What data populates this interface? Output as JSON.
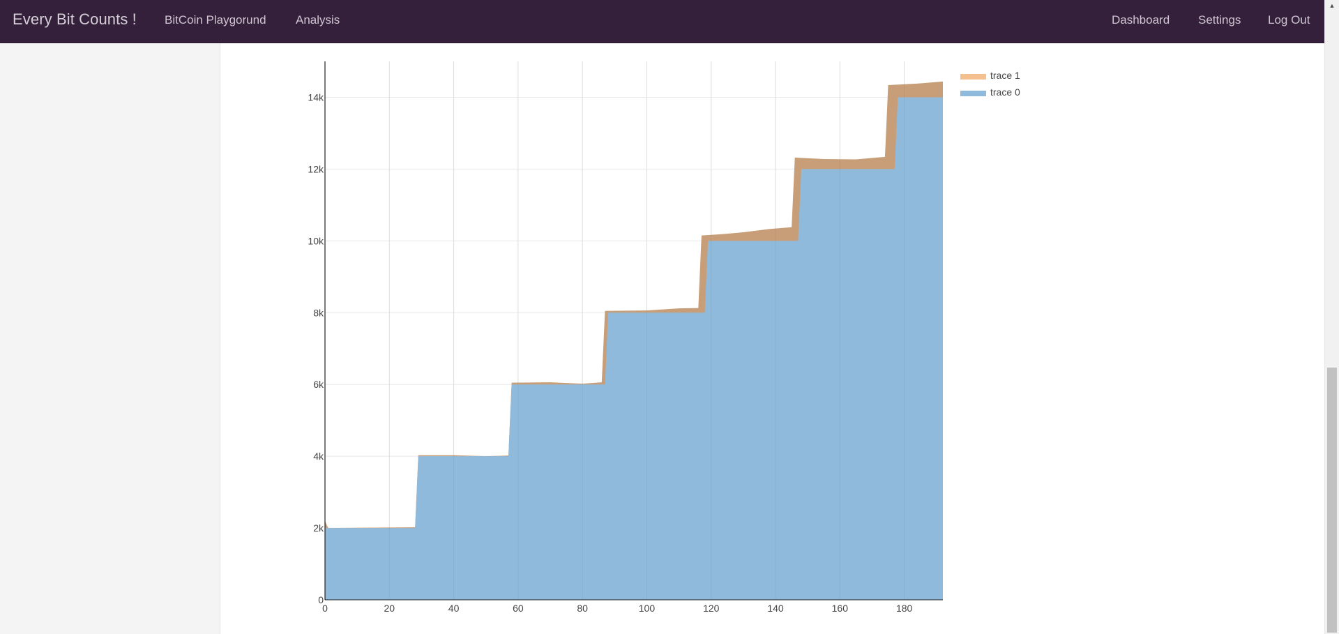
{
  "navbar": {
    "brand": "Every Bit Counts !",
    "left_links": [
      "BitCoin Playgorund",
      "Analysis"
    ],
    "right_links": [
      "Dashboard",
      "Settings",
      "Log Out"
    ]
  },
  "colors": {
    "navbar_bg": "#35203b",
    "trace0_fill": "#8fbadb",
    "trace1_fill": "#c89e78",
    "trace1_legend": "#f5c08f",
    "trace0_legend": "#8fbadb"
  },
  "chart_data": {
    "type": "area",
    "stacked": true,
    "grid": true,
    "legend_position": "top-right",
    "xlim": [
      0,
      192
    ],
    "ylim": [
      0,
      15000
    ],
    "x_ticks": [
      0,
      20,
      40,
      60,
      80,
      100,
      120,
      140,
      160,
      180
    ],
    "y_ticks": [
      0,
      2000,
      4000,
      6000,
      8000,
      10000,
      12000,
      14000
    ],
    "y_tick_labels": [
      "0",
      "2k",
      "4k",
      "6k",
      "8k",
      "10k",
      "12k",
      "14k"
    ],
    "legend": [
      "trace 1",
      "trace 0"
    ],
    "series": [
      {
        "name": "trace 0",
        "points": [
          [
            0,
            2000
          ],
          [
            28,
            2000
          ],
          [
            29,
            4000
          ],
          [
            57,
            4000
          ],
          [
            58,
            6000
          ],
          [
            87,
            6000
          ],
          [
            88,
            8000
          ],
          [
            118,
            8000
          ],
          [
            119,
            10000
          ],
          [
            147,
            10000
          ],
          [
            148,
            12000
          ],
          [
            177,
            12000
          ],
          [
            178,
            14000
          ],
          [
            192,
            14000
          ]
        ]
      },
      {
        "name": "trace 1",
        "points": [
          [
            0,
            2200
          ],
          [
            1,
            2000
          ],
          [
            28,
            2020
          ],
          [
            29,
            4030
          ],
          [
            40,
            4030
          ],
          [
            50,
            4000
          ],
          [
            57,
            4020
          ],
          [
            58,
            6050
          ],
          [
            70,
            6060
          ],
          [
            80,
            6020
          ],
          [
            86,
            6060
          ],
          [
            87,
            8050
          ],
          [
            100,
            8060
          ],
          [
            110,
            8120
          ],
          [
            116,
            8130
          ],
          [
            117,
            10150
          ],
          [
            124,
            10190
          ],
          [
            130,
            10240
          ],
          [
            138,
            10330
          ],
          [
            145,
            10380
          ],
          [
            146,
            12320
          ],
          [
            155,
            12280
          ],
          [
            165,
            12270
          ],
          [
            174,
            12340
          ],
          [
            175,
            14340
          ],
          [
            184,
            14380
          ],
          [
            192,
            14440
          ]
        ]
      }
    ]
  }
}
